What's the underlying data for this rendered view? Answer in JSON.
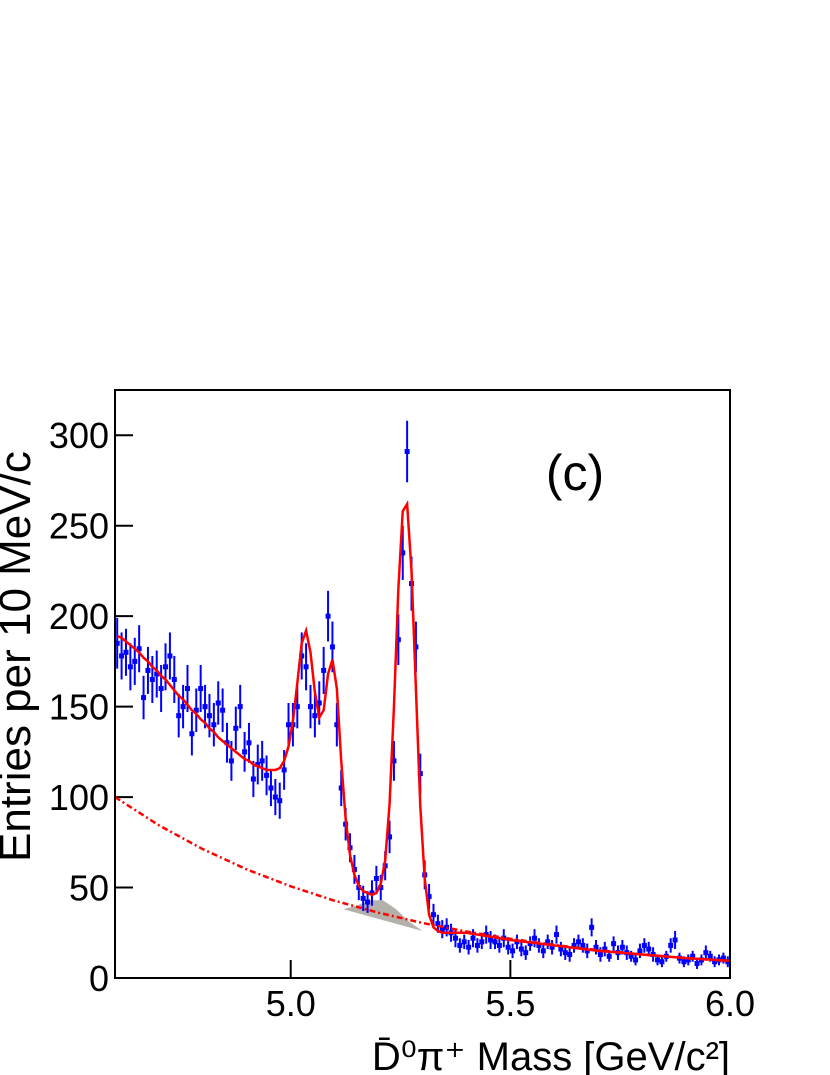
{
  "chart_data": {
    "type": "errorbar",
    "annotation": "(c)",
    "x_label": "D̄⁰π⁺ Mass [GeV/c²]",
    "y_label": "Entries per 10 MeV/c",
    "xlim": [
      4.6,
      6.0
    ],
    "ylim": [
      0,
      325
    ],
    "xticks": [
      {
        "value": 5,
        "label": "5.0"
      },
      5.5,
      {
        "value": 6,
        "label": "6.0"
      }
    ],
    "yticks": [
      0,
      50,
      100,
      150,
      200,
      250,
      300
    ],
    "x": [
      4.605,
      4.615,
      4.625,
      4.635,
      4.645,
      4.655,
      4.665,
      4.675,
      4.685,
      4.695,
      4.705,
      4.715,
      4.725,
      4.735,
      4.745,
      4.755,
      4.765,
      4.775,
      4.785,
      4.795,
      4.805,
      4.815,
      4.825,
      4.835,
      4.845,
      4.855,
      4.865,
      4.875,
      4.885,
      4.895,
      4.905,
      4.915,
      4.925,
      4.935,
      4.945,
      4.955,
      4.965,
      4.975,
      4.985,
      4.995,
      5.005,
      5.015,
      5.025,
      5.035,
      5.045,
      5.055,
      5.065,
      5.075,
      5.085,
      5.095,
      5.105,
      5.115,
      5.125,
      5.135,
      5.145,
      5.155,
      5.165,
      5.175,
      5.185,
      5.195,
      5.205,
      5.215,
      5.225,
      5.235,
      5.245,
      5.255,
      5.265,
      5.275,
      5.285,
      5.295,
      5.305,
      5.315,
      5.325,
      5.335,
      5.345,
      5.355,
      5.365,
      5.375,
      5.385,
      5.395,
      5.405,
      5.415,
      5.425,
      5.435,
      5.445,
      5.455,
      5.465,
      5.475,
      5.485,
      5.495,
      5.505,
      5.515,
      5.525,
      5.535,
      5.545,
      5.555,
      5.565,
      5.575,
      5.585,
      5.595,
      5.605,
      5.615,
      5.625,
      5.635,
      5.645,
      5.655,
      5.665,
      5.675,
      5.685,
      5.695,
      5.705,
      5.715,
      5.725,
      5.735,
      5.745,
      5.755,
      5.765,
      5.775,
      5.785,
      5.795,
      5.805,
      5.815,
      5.825,
      5.835,
      5.845,
      5.855,
      5.865,
      5.875,
      5.885,
      5.895,
      5.905,
      5.915,
      5.925,
      5.935,
      5.945,
      5.955,
      5.965,
      5.975,
      5.985,
      5.995
    ],
    "series": [
      {
        "type": "errorbar",
        "color": "#0000ff",
        "values": [
          185,
          178,
          180,
          172,
          175,
          182,
          155,
          170,
          165,
          168,
          160,
          172,
          178,
          165,
          145,
          150,
          160,
          135,
          148,
          160,
          150,
          145,
          140,
          152,
          148,
          130,
          120,
          138,
          150,
          125,
          130,
          110,
          118,
          120,
          112,
          105,
          100,
          98,
          115,
          140,
          140,
          150,
          178,
          172,
          150,
          145,
          152,
          170,
          200,
          183,
          140,
          105,
          85,
          72,
          60,
          50,
          44,
          42,
          47,
          55,
          50,
          62,
          78,
          120,
          187,
          235,
          291,
          218,
          183,
          113,
          57,
          45,
          35,
          30,
          27,
          28,
          25,
          22,
          18,
          20,
          17,
          22,
          18,
          20,
          24,
          21,
          20,
          18,
          22,
          17,
          15,
          20,
          16,
          14,
          19,
          22,
          18,
          15,
          20,
          17,
          24,
          16,
          14,
          13,
          18,
          20,
          18,
          15,
          28,
          17,
          13,
          16,
          12,
          19,
          14,
          17,
          14,
          12,
          10,
          15,
          18,
          16,
          13,
          10,
          9,
          12,
          18,
          21,
          11,
          9,
          10,
          12,
          8,
          10,
          14,
          12,
          9,
          10,
          11,
          9
        ],
        "errors": [
          14,
          13,
          13,
          13,
          13,
          13,
          12,
          13,
          13,
          13,
          13,
          13,
          13,
          13,
          12,
          12,
          13,
          12,
          12,
          13,
          12,
          12,
          12,
          12,
          12,
          11,
          11,
          12,
          12,
          11,
          11,
          10,
          11,
          11,
          11,
          10,
          10,
          10,
          11,
          12,
          12,
          12,
          13,
          13,
          12,
          12,
          12,
          13,
          14,
          14,
          12,
          10,
          9,
          8,
          8,
          7,
          7,
          6,
          7,
          7,
          7,
          8,
          9,
          11,
          14,
          15,
          17,
          15,
          14,
          11,
          8,
          7,
          6,
          5,
          5,
          5,
          5,
          5,
          4,
          4,
          4,
          5,
          4,
          4,
          5,
          5,
          4,
          4,
          5,
          4,
          4,
          4,
          4,
          4,
          4,
          5,
          4,
          4,
          4,
          4,
          5,
          4,
          4,
          4,
          4,
          4,
          4,
          4,
          5,
          4,
          4,
          4,
          3,
          4,
          4,
          4,
          4,
          3,
          3,
          4,
          4,
          4,
          4,
          3,
          3,
          3,
          4,
          5,
          3,
          3,
          3,
          3,
          3,
          3,
          4,
          3,
          3,
          3,
          3,
          3
        ]
      },
      {
        "type": "line",
        "color": "#ff0000",
        "x": [
          4.605,
          4.615,
          4.625,
          4.635,
          4.645,
          4.655,
          4.665,
          4.675,
          4.685,
          4.695,
          4.705,
          4.715,
          4.725,
          4.735,
          4.745,
          4.755,
          4.765,
          4.775,
          4.785,
          4.795,
          4.805,
          4.815,
          4.825,
          4.835,
          4.845,
          4.855,
          4.865,
          4.875,
          4.885,
          4.895,
          4.905,
          4.915,
          4.925,
          4.935,
          4.945,
          4.955,
          4.965,
          4.975,
          4.985,
          4.995,
          5.005,
          5.015,
          5.025,
          5.035,
          5.045,
          5.055,
          5.065,
          5.075,
          5.085,
          5.095,
          5.105,
          5.115,
          5.125,
          5.135,
          5.145,
          5.155,
          5.165,
          5.175,
          5.185,
          5.195,
          5.205,
          5.215,
          5.225,
          5.235,
          5.245,
          5.255,
          5.265,
          5.275,
          5.285,
          5.295,
          5.305,
          5.315,
          5.325,
          5.335,
          5.345,
          5.4,
          5.5,
          5.6,
          5.7,
          5.8,
          5.9,
          6.0
        ],
        "values": [
          189,
          188,
          186,
          184,
          182,
          180,
          177,
          175,
          172,
          170,
          167,
          165,
          162,
          159,
          156,
          154,
          151,
          148,
          146,
          143,
          141,
          138,
          136,
          133,
          131,
          129,
          127,
          125,
          123,
          121,
          120,
          118,
          117,
          116,
          115,
          115,
          115,
          116,
          120,
          128,
          142,
          163,
          185,
          192,
          180,
          158,
          144,
          148,
          168,
          176,
          160,
          120,
          88,
          68,
          57,
          51,
          48,
          47,
          46,
          47,
          52,
          65,
          96,
          150,
          215,
          258,
          262,
          225,
          160,
          95,
          55,
          35,
          28,
          26,
          25,
          25,
          21,
          18,
          15,
          13,
          11,
          9.5
        ]
      },
      {
        "type": "line",
        "color": "#ff0000",
        "dashed": true,
        "x": [
          4.6,
          4.7,
          4.8,
          4.9,
          5.0,
          5.1,
          5.2,
          5.3,
          5.4,
          5.5,
          5.6,
          5.7,
          5.8,
          5.9,
          6.0
        ],
        "values": [
          100,
          84.4,
          71.2,
          60.0,
          50.7,
          42.7,
          36.1,
          30.4,
          25.7,
          21.7,
          18.3,
          15.4,
          13.0,
          11.0,
          9.3
        ]
      },
      {
        "type": "area",
        "color": "#b4b0aa",
        "x": [
          5.12,
          5.15,
          5.18,
          5.21,
          5.24,
          5.27,
          5.3
        ],
        "values": [
          38,
          40,
          43,
          43,
          38,
          31,
          26
        ]
      }
    ]
  }
}
